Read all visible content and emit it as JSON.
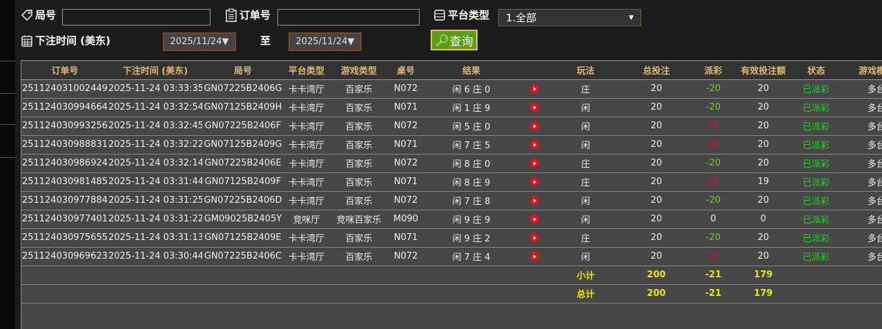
{
  "filters": {
    "round_label": "局号",
    "round_value": "",
    "order_label": "订单号",
    "order_value": "",
    "platform_label": "平台类型",
    "platform_value": "1.全部",
    "time_label": "下注时间 (美东)",
    "date_from": "2025/11/24▼",
    "to_label": "至",
    "date_to": "2025/11/24▼",
    "query_label": "查询"
  },
  "table": {
    "headers": [
      "订单号",
      "下注时间 (美东)",
      "局号",
      "平台类型",
      "游戏类型",
      "桌号",
      "结果",
      "",
      "玩法",
      "总投注",
      "派彩",
      "有效投注额",
      "状态",
      "游戏模式"
    ],
    "rows": [
      [
        "251124031002449",
        "2025-11-24 03:33:35",
        "GN07225B2406G",
        "卡卡湾厅",
        "百家乐",
        "N072",
        "闲 6 庄 0",
        "庄",
        "20",
        "-20",
        "20",
        "已派彩",
        "多台"
      ],
      [
        "251124030994664",
        "2025-11-24 03:32:54",
        "GN07125B2409H",
        "卡卡湾厅",
        "百家乐",
        "N071",
        "闲 1 庄 9",
        "闲",
        "20",
        "-20",
        "20",
        "已派彩",
        "多台"
      ],
      [
        "251124030993256",
        "2025-11-24 03:32:45",
        "GN07225B2406F",
        "卡卡湾厅",
        "百家乐",
        "N072",
        "闲 5 庄 0",
        "闲",
        "20",
        "20",
        "20",
        "已派彩",
        "多台"
      ],
      [
        "251124030988831",
        "2025-11-24 03:32:22",
        "GN07125B2409G",
        "卡卡湾厅",
        "百家乐",
        "N071",
        "闲 7 庄 5",
        "闲",
        "20",
        "20",
        "20",
        "已派彩",
        "多台"
      ],
      [
        "251124030986924",
        "2025-11-24 03:32:14",
        "GN07225B2406E",
        "卡卡湾厅",
        "百家乐",
        "N072",
        "闲 8 庄 0",
        "庄",
        "20",
        "-20",
        "20",
        "已派彩",
        "多台"
      ],
      [
        "251124030981485",
        "2025-11-24 03:31:44",
        "GN07125B2409F",
        "卡卡湾厅",
        "百家乐",
        "N071",
        "闲 8 庄 9",
        "庄",
        "20",
        "19",
        "19",
        "已派彩",
        "多台"
      ],
      [
        "251124030977884",
        "2025-11-24 03:31:25",
        "GN07225B2406D",
        "卡卡湾厅",
        "百家乐",
        "N072",
        "闲 7 庄 8",
        "闲",
        "20",
        "-20",
        "20",
        "已派彩",
        "多台"
      ],
      [
        "251124030977401",
        "2025-11-24 03:31:22",
        "GM09025B2405Y",
        "竞咪厅",
        "竞咪百家乐",
        "M090",
        "闲 9 庄 9",
        "闲",
        "20",
        "0",
        "0",
        "已派彩",
        "多台"
      ],
      [
        "251124030975655",
        "2025-11-24 03:31:13",
        "GN07125B2409E",
        "卡卡湾厅",
        "百家乐",
        "N071",
        "闲 9 庄 2",
        "庄",
        "20",
        "-20",
        "20",
        "已派彩",
        "多台"
      ],
      [
        "251124030969623",
        "2025-11-24 03:30:44",
        "GN07225B2406C",
        "卡卡湾厅",
        "百家乐",
        "N072",
        "闲 7 庄 4",
        "闲",
        "20",
        "20",
        "20",
        "已派彩",
        "多台"
      ]
    ],
    "subtotal": {
      "label": "小计",
      "total_bet": "200",
      "payout": "-21",
      "valid_bet": "179"
    },
    "total": {
      "label": "总计",
      "total_bet": "200",
      "payout": "-21",
      "valid_bet": "179"
    }
  },
  "colors": {
    "header_text": "#e0b870",
    "negative": "#66d41a",
    "positive": "#d2123a",
    "status": "#18d818",
    "summary": "#e8e810",
    "query_button": "#5a9e12"
  }
}
